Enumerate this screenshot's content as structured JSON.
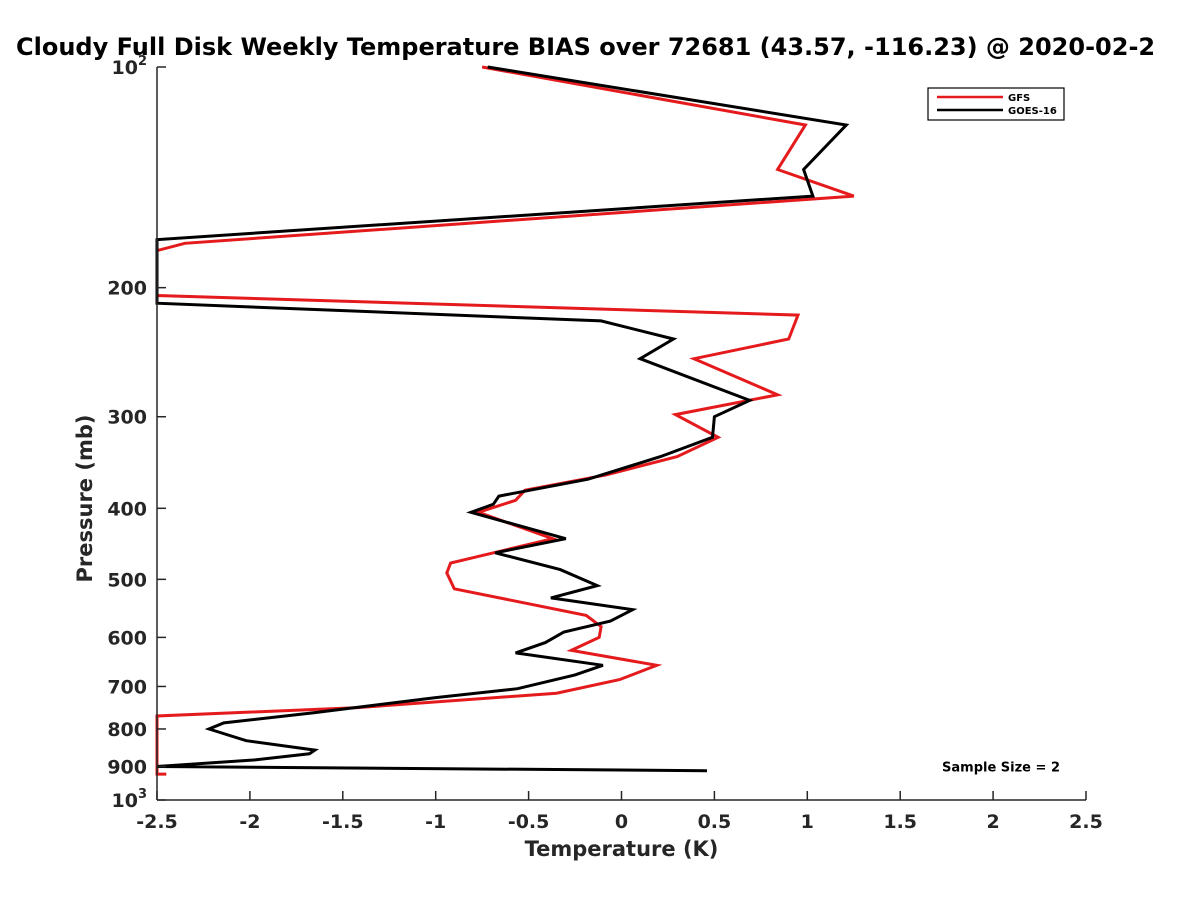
{
  "chart_data": {
    "type": "line",
    "title": "Cloudy Full Disk Weekly Temperature BIAS over 72681 (43.57, -116.23) @ 2020-02-2",
    "xlabel": "Temperature (K)",
    "ylabel": "Pressure (mb)",
    "xlim": [
      -2.5,
      2.5
    ],
    "ylim": [
      100,
      1000
    ],
    "yscale": "log",
    "y_reversed": true,
    "grid": false,
    "legend_position": "top-right",
    "x_ticks": [
      -2.5,
      -2,
      -1.5,
      -1,
      -0.5,
      0,
      0.5,
      1,
      1.5,
      2,
      2.5
    ],
    "x_tick_labels": [
      "-2.5",
      "-2",
      "-1.5",
      "-1",
      "-0.5",
      "0",
      "0.5",
      "1",
      "1.5",
      "2",
      "2.5"
    ],
    "y_ticks": [
      100,
      200,
      300,
      400,
      500,
      600,
      700,
      800,
      900,
      1000
    ],
    "y_tick_labels": [
      {
        "base": "10",
        "sup": "2"
      },
      {
        "base": "200",
        "sup": ""
      },
      {
        "base": "300",
        "sup": ""
      },
      {
        "base": "400",
        "sup": ""
      },
      {
        "base": "500",
        "sup": ""
      },
      {
        "base": "600",
        "sup": ""
      },
      {
        "base": "700",
        "sup": ""
      },
      {
        "base": "800",
        "sup": ""
      },
      {
        "base": "900",
        "sup": ""
      },
      {
        "base": "10",
        "sup": "3"
      }
    ],
    "annotation": "Sample Size = 2",
    "series": [
      {
        "name": "GFS",
        "color": "#e41a1c",
        "points": [
          [
            -0.75,
            100
          ],
          [
            0.99,
            120
          ],
          [
            0.84,
            138
          ],
          [
            1.25,
            150
          ],
          [
            -2.35,
            174
          ],
          [
            -2.5,
            178
          ],
          [
            -2.5,
            205
          ],
          [
            0.95,
            218
          ],
          [
            0.9,
            235
          ],
          [
            0.39,
            250
          ],
          [
            0.84,
            280
          ],
          [
            0.29,
            298
          ],
          [
            0.52,
            320
          ],
          [
            0.3,
            340
          ],
          [
            -0.08,
            360
          ],
          [
            -0.52,
            378
          ],
          [
            -0.57,
            390
          ],
          [
            -0.77,
            405
          ],
          [
            -0.37,
            440
          ],
          [
            -0.92,
            475
          ],
          [
            -0.94,
            490
          ],
          [
            -0.9,
            515
          ],
          [
            -0.19,
            560
          ],
          [
            -0.11,
            580
          ],
          [
            -0.12,
            600
          ],
          [
            -0.27,
            625
          ],
          [
            0.19,
            655
          ],
          [
            -0.01,
            685
          ],
          [
            -0.35,
            715
          ],
          [
            -1.42,
            748
          ],
          [
            -2.5,
            768
          ],
          [
            -2.5,
            922
          ],
          [
            -2.45,
            922
          ]
        ]
      },
      {
        "name": "GOES-16",
        "color": "#000000",
        "points": [
          [
            -0.72,
            100
          ],
          [
            1.21,
            120
          ],
          [
            0.98,
            138
          ],
          [
            1.03,
            150
          ],
          [
            -2.5,
            172
          ],
          [
            -2.5,
            210
          ],
          [
            -0.11,
            222
          ],
          [
            0.28,
            235
          ],
          [
            0.1,
            250
          ],
          [
            0.69,
            285
          ],
          [
            0.5,
            300
          ],
          [
            0.49,
            320
          ],
          [
            0.21,
            340
          ],
          [
            -0.18,
            365
          ],
          [
            -0.66,
            385
          ],
          [
            -0.69,
            395
          ],
          [
            -0.81,
            405
          ],
          [
            -0.3,
            440
          ],
          [
            -0.68,
            460
          ],
          [
            -0.33,
            485
          ],
          [
            -0.13,
            510
          ],
          [
            -0.38,
            530
          ],
          [
            0.06,
            550
          ],
          [
            -0.06,
            570
          ],
          [
            -0.31,
            590
          ],
          [
            -0.41,
            610
          ],
          [
            -0.57,
            630
          ],
          [
            -0.1,
            655
          ],
          [
            -0.25,
            675
          ],
          [
            -0.56,
            705
          ],
          [
            -1.0,
            725
          ],
          [
            -1.65,
            760
          ],
          [
            -2.14,
            785
          ],
          [
            -2.22,
            800
          ],
          [
            -2.02,
            830
          ],
          [
            -1.65,
            855
          ],
          [
            -1.68,
            865
          ],
          [
            -1.98,
            882
          ],
          [
            -2.5,
            900
          ],
          [
            -2.5,
            900
          ],
          [
            0.46,
            912
          ]
        ]
      }
    ]
  }
}
